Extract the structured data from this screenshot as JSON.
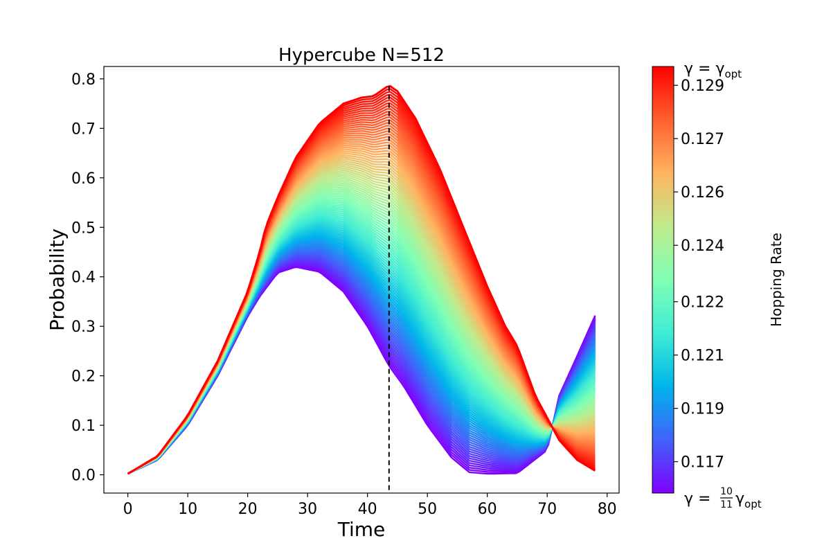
{
  "chart_data": {
    "type": "line",
    "title": "Hypercube N=512",
    "xlabel": "Time",
    "ylabel": "Probability",
    "xlim": [
      -4,
      82
    ],
    "ylim": [
      -0.037,
      0.825
    ],
    "x_ticks": [
      "0",
      "10",
      "20",
      "30",
      "40",
      "50",
      "60",
      "70",
      "80"
    ],
    "y_ticks": [
      "0.0",
      "0.1",
      "0.2",
      "0.3",
      "0.4",
      "0.5",
      "0.6",
      "0.7",
      "0.8"
    ],
    "vline_x": 43.6,
    "grid": false,
    "series_count": 100,
    "lowest_curve": {
      "x": [
        0,
        5,
        10,
        15,
        20,
        22,
        25,
        28,
        32,
        36,
        40,
        43.6,
        46,
        50,
        54,
        57,
        60,
        65,
        70,
        72,
        75,
        78.3
      ],
      "y": [
        0.002,
        0.03,
        0.1,
        0.2,
        0.32,
        0.36,
        0.408,
        0.42,
        0.41,
        0.37,
        0.3,
        0.22,
        0.18,
        0.1,
        0.035,
        0.005,
        0.002,
        0.003,
        0.05,
        0.16,
        0.24,
        0.33
      ]
    },
    "highest_curve": {
      "x": [
        0,
        5,
        10,
        15,
        20,
        22,
        23,
        25,
        28,
        32,
        36,
        39,
        41,
        43.6,
        45,
        48,
        52,
        56,
        60,
        63,
        65,
        68,
        72,
        75,
        78.3
      ],
      "y": [
        0.002,
        0.038,
        0.12,
        0.23,
        0.37,
        0.45,
        0.5,
        0.56,
        0.64,
        0.71,
        0.75,
        0.762,
        0.765,
        0.787,
        0.775,
        0.72,
        0.62,
        0.5,
        0.38,
        0.3,
        0.26,
        0.16,
        0.07,
        0.03,
        0.006
      ]
    },
    "colorbar": {
      "label": "Hopping Rate",
      "ticks": [
        "0.117",
        "0.119",
        "0.121",
        "0.122",
        "0.124",
        "0.126",
        "0.127",
        "0.129"
      ],
      "tick_values": [
        0.1171,
        0.1188,
        0.1205,
        0.1222,
        0.124,
        0.1257,
        0.1274,
        0.1291
      ],
      "vmin": 0.1161,
      "vmax": 0.1297,
      "top_label_main": "γ = γ",
      "top_label_sub": "opt",
      "bottom_label_main": "γ =",
      "bottom_label_num": "10",
      "bottom_label_den": "11",
      "bottom_label_gamma": "γ",
      "bottom_label_sub": "opt",
      "colormap": [
        "#8000ff",
        "#4062fa",
        "#00b5eb",
        "#40ecd4",
        "#80ffb4",
        "#c0eb8d",
        "#ffb360",
        "#ff6030",
        "#ff0000"
      ]
    }
  }
}
